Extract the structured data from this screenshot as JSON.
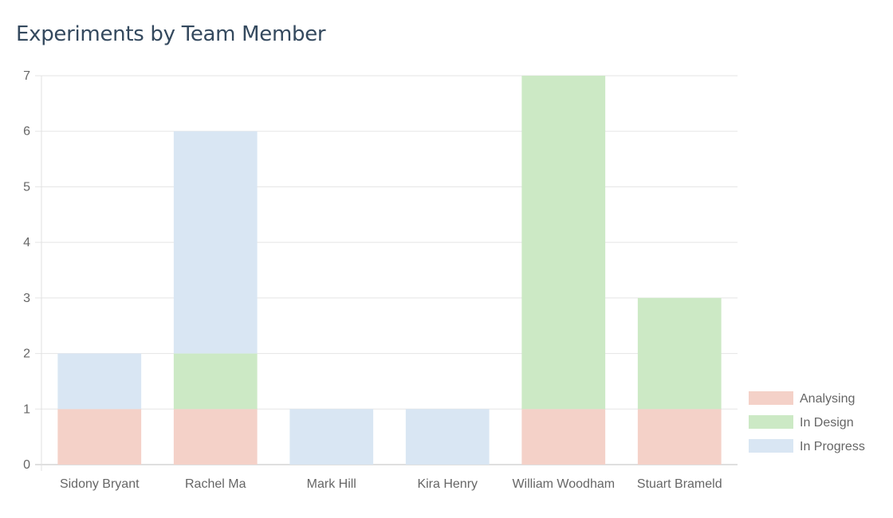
{
  "chart_data": {
    "type": "bar",
    "stacked": true,
    "title": "Experiments by Team Member",
    "categories": [
      "Sidony Bryant",
      "Rachel Ma",
      "Mark Hill",
      "Kira Henry",
      "William Woodham",
      "Stuart Brameld"
    ],
    "series": [
      {
        "name": "Analysing",
        "color": "#f4d1c8",
        "values": [
          1,
          1,
          0,
          0,
          1,
          1
        ]
      },
      {
        "name": "In Design",
        "color": "#cce9c5",
        "values": [
          0,
          1,
          0,
          0,
          6,
          2
        ]
      },
      {
        "name": "In Progress",
        "color": "#d9e6f3",
        "values": [
          1,
          4,
          1,
          1,
          0,
          0
        ]
      }
    ],
    "ylim": [
      0,
      7
    ],
    "yticks": [
      0,
      1,
      2,
      3,
      4,
      5,
      6,
      7
    ],
    "grid": true,
    "legend": "bottom-right"
  }
}
